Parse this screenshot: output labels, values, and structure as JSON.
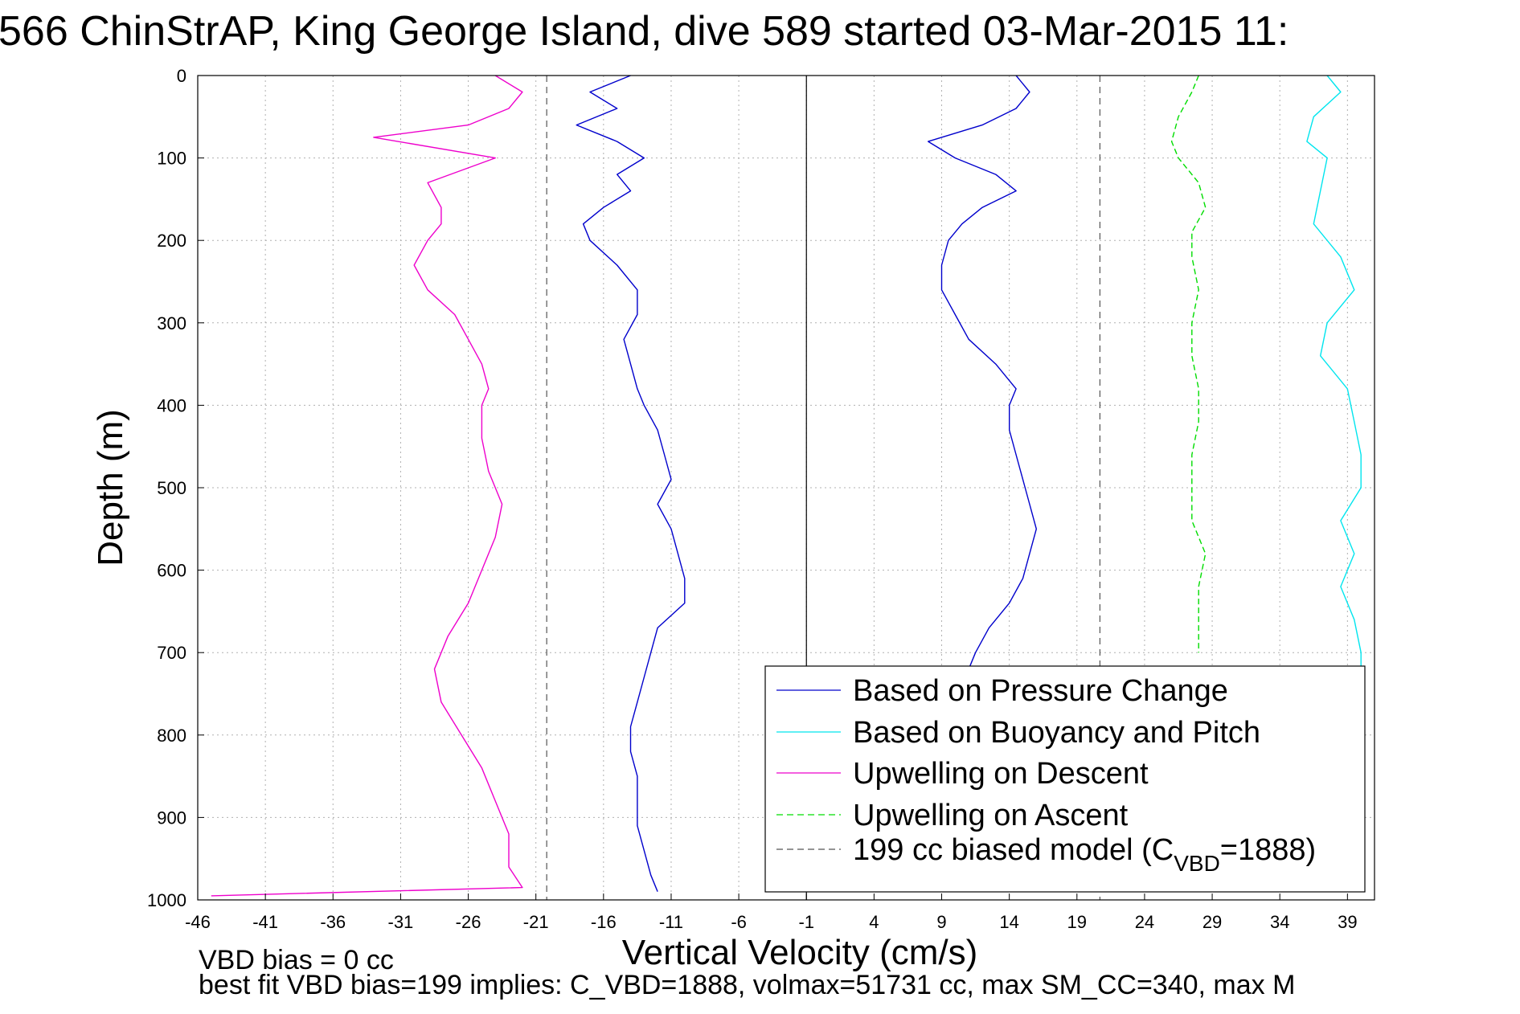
{
  "title": "566 ChinStrAP, King George Island, dive 589 started 03-Mar-2015 11:",
  "footer": {
    "line1": "VBD bias = 0 cc",
    "line2": "best fit VBD bias=199 implies: C_VBD=1888, volmax=51731 cc, max SM_CC=340, max M"
  },
  "chart_data": {
    "type": "line",
    "xlabel": "Vertical Velocity (cm/s)",
    "ylabel": "Depth (m)",
    "xlim": [
      -46,
      41
    ],
    "ylim": [
      1000,
      0
    ],
    "y_inverted": true,
    "grid": true,
    "xticks": [
      -46,
      -41,
      -36,
      -31,
      -26,
      -21,
      -16,
      -11,
      -6,
      -1,
      4,
      9,
      14,
      19,
      24,
      29,
      34,
      39
    ],
    "yticks": [
      0,
      100,
      200,
      300,
      400,
      500,
      600,
      700,
      800,
      900,
      1000
    ],
    "legend_placement": "bottom-right",
    "legend": [
      {
        "label": "Based on Pressure Change",
        "color": "#0000cc",
        "style": "solid"
      },
      {
        "label": "Based on Buoyancy and Pitch",
        "color": "#00e5ee",
        "style": "solid"
      },
      {
        "label": "Upwelling on Descent",
        "color": "#ee00cc",
        "style": "solid"
      },
      {
        "label": "Upwelling on Ascent",
        "color": "#00dd00",
        "style": "dashed"
      },
      {
        "label_main": "199 cc biased model (C",
        "label_sub": "VBD",
        "label_end": "=1888)",
        "color": "#555555",
        "style": "dashed"
      }
    ],
    "reference_lines": [
      {
        "x": -1,
        "color": "#000000",
        "style": "solid"
      },
      {
        "x": -20.2,
        "color": "#555555",
        "style": "dashed"
      },
      {
        "x": 20.7,
        "color": "#555555",
        "style": "dashed"
      }
    ],
    "series": [
      {
        "name": "Based on Pressure Change (descent)",
        "color": "#0000cc",
        "style": "solid",
        "depth": [
          0,
          20,
          40,
          60,
          80,
          100,
          120,
          140,
          160,
          180,
          200,
          230,
          260,
          290,
          320,
          350,
          380,
          400,
          430,
          460,
          490,
          520,
          550,
          580,
          610,
          640,
          670,
          700,
          730,
          760,
          790,
          820,
          850,
          880,
          910,
          940,
          970,
          990
        ],
        "values": [
          -14,
          -17,
          -15,
          -18,
          -15,
          -13,
          -15,
          -14,
          -16,
          -17.5,
          -17,
          -15,
          -13.5,
          -13.5,
          -14.5,
          -14,
          -13.5,
          -13,
          -12,
          -11.5,
          -11,
          -12,
          -11,
          -10.5,
          -10,
          -10,
          -12,
          -12.5,
          -13,
          -13.5,
          -14,
          -14,
          -13.5,
          -13.5,
          -13.5,
          -13,
          -12.5,
          -12
        ]
      },
      {
        "name": "Based on Pressure Change (ascent)",
        "color": "#0000cc",
        "style": "solid",
        "depth": [
          0,
          20,
          40,
          60,
          80,
          100,
          120,
          140,
          160,
          180,
          200,
          230,
          260,
          290,
          320,
          350,
          380,
          400,
          430,
          460,
          490,
          520,
          550,
          580,
          610,
          640,
          670,
          700,
          720
        ],
        "values": [
          14.5,
          15.5,
          14.5,
          12,
          8,
          10,
          13,
          14.5,
          12,
          10.5,
          9.5,
          9,
          9,
          10,
          11,
          13,
          14.5,
          14,
          14,
          14.5,
          15,
          15.5,
          16,
          15.5,
          15,
          14,
          12.5,
          11.5,
          11
        ]
      },
      {
        "name": "Based on Buoyancy and Pitch",
        "color": "#00e5ee",
        "style": "solid",
        "depth": [
          0,
          20,
          50,
          80,
          100,
          140,
          180,
          220,
          260,
          300,
          340,
          380,
          420,
          460,
          500,
          540,
          580,
          620,
          660,
          700,
          740
        ],
        "values": [
          37.5,
          38.5,
          36.5,
          36,
          37.5,
          37,
          36.5,
          38.5,
          39.5,
          37.5,
          37,
          39,
          39.5,
          40,
          40,
          38.5,
          39.5,
          38.5,
          39.5,
          40,
          40
        ]
      },
      {
        "name": "Upwelling on Descent",
        "color": "#ee00cc",
        "style": "solid",
        "depth": [
          0,
          20,
          40,
          60,
          75,
          100,
          130,
          160,
          180,
          200,
          230,
          260,
          290,
          320,
          350,
          380,
          400,
          440,
          480,
          520,
          560,
          600,
          640,
          680,
          720,
          760,
          800,
          840,
          880,
          920,
          960,
          985,
          995
        ],
        "values": [
          -24,
          -22,
          -23,
          -26,
          -33,
          -24,
          -29,
          -28,
          -28,
          -29,
          -30,
          -29,
          -27,
          -26,
          -25,
          -24.5,
          -25,
          -25,
          -24.5,
          -23.5,
          -24,
          -25,
          -26,
          -27.5,
          -28.5,
          -28,
          -26.5,
          -25,
          -24,
          -23,
          -23,
          -22,
          -45
        ]
      },
      {
        "name": "Upwelling on Ascent",
        "color": "#00dd00",
        "style": "dashed",
        "depth": [
          0,
          20,
          50,
          80,
          100,
          130,
          160,
          190,
          220,
          260,
          300,
          340,
          380,
          420,
          460,
          500,
          540,
          580,
          620,
          660,
          700
        ],
        "values": [
          28,
          27.5,
          26.5,
          26,
          26.5,
          28,
          28.5,
          27.5,
          27.5,
          28,
          27.5,
          27.5,
          28,
          28,
          27.5,
          27.5,
          27.5,
          28.5,
          28,
          28,
          28
        ]
      }
    ]
  }
}
